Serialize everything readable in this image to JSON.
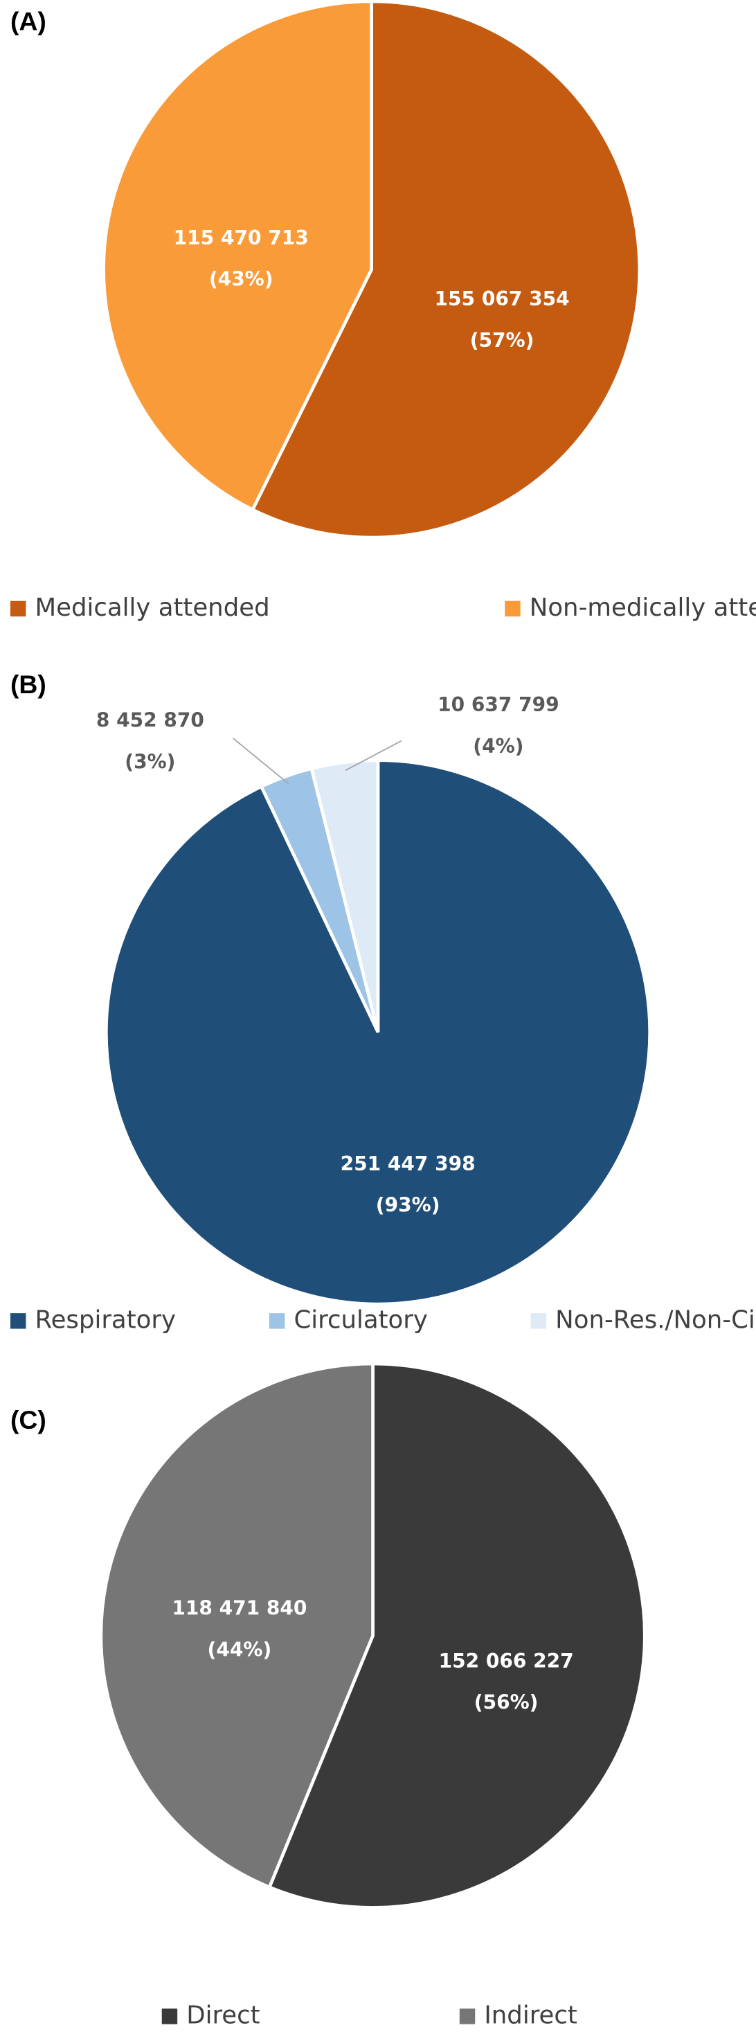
{
  "chart_data": [
    {
      "type": "pie",
      "panel_label": "(A)",
      "categories": [
        "Medically attended",
        "Non-medically attended"
      ],
      "values": [
        155067354,
        115470713
      ],
      "value_labels": [
        "155 067 354",
        "115 470 713"
      ],
      "percentages": [
        57,
        43
      ],
      "percent_labels": [
        "(57%)",
        "(43%)"
      ],
      "colors": [
        "#c55a11",
        "#f99b38"
      ]
    },
    {
      "type": "pie",
      "panel_label": "(B)",
      "categories": [
        "Respiratory",
        "Circulatory",
        "Non-Res./Non-Cir."
      ],
      "values": [
        251447398,
        8452870,
        10637799
      ],
      "value_labels": [
        "251 447 398",
        "8 452 870",
        "10 637 799"
      ],
      "percentages": [
        93,
        3,
        4
      ],
      "percent_labels": [
        "(93%)",
        "(3%)",
        "(4%)"
      ],
      "colors": [
        "#1f4e79",
        "#9dc3e6",
        "#deebf7"
      ]
    },
    {
      "type": "pie",
      "panel_label": "(C)",
      "categories": [
        "Direct",
        "Indirect"
      ],
      "values": [
        152066227,
        118471840
      ],
      "value_labels": [
        "152 066 227",
        "118 471 840"
      ],
      "percentages": [
        56,
        44
      ],
      "percent_labels": [
        "(56%)",
        "(44%)"
      ],
      "colors": [
        "#3a3a3a",
        "#767676"
      ]
    }
  ]
}
